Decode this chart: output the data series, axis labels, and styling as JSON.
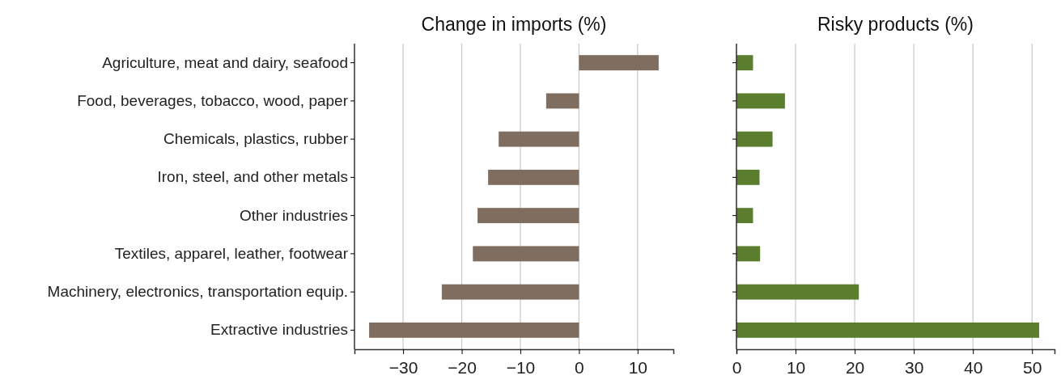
{
  "chart_data": [
    {
      "type": "bar",
      "orientation": "horizontal",
      "title": "Change in imports (%)",
      "categories": [
        "Agriculture, meat and dairy, seafood",
        "Food, beverages, tobacco, wood, paper",
        "Chemicals, plastics, rubber",
        "Iron, steel, and other metals",
        "Other industries",
        "Textiles, apparel, leather, footwear",
        "Machinery, electronics, transportation equip.",
        "Extractive industries"
      ],
      "values": [
        13.6,
        -5.6,
        -13.7,
        -15.5,
        -17.3,
        -18.1,
        -23.4,
        -35.8
      ],
      "color": "#7f6d5f",
      "xlim": [
        -38.3,
        16.1
      ],
      "xticks": [
        {
          "value": -30,
          "label": "−30"
        },
        {
          "value": -20,
          "label": "−20"
        },
        {
          "value": -10,
          "label": "−10"
        },
        0,
        10
      ],
      "grid": "x"
    },
    {
      "type": "bar",
      "orientation": "horizontal",
      "title": "Risky products (%)",
      "categories": [
        null,
        null,
        null,
        null,
        null,
        null,
        null,
        null
      ],
      "values": [
        2.8,
        8.2,
        6.1,
        3.9,
        2.8,
        4.0,
        20.7,
        51.2
      ],
      "color": "#5a7e2e",
      "xlim": [
        0,
        53.8
      ],
      "xticks": [
        0,
        10,
        20,
        30,
        40,
        50
      ],
      "grid": "x",
      "tick_labels": "x"
    }
  ]
}
